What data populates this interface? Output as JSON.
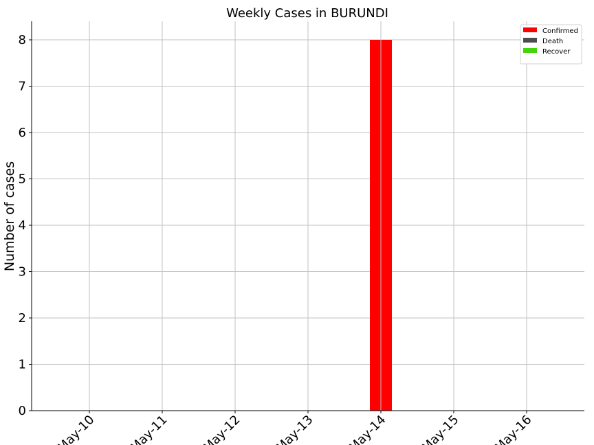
{
  "chart_data": {
    "type": "bar",
    "title": "Weekly Cases in BURUNDI",
    "xlabel": "",
    "ylabel": "Number of cases",
    "categories": [
      "May-10",
      "May-11",
      "May-12",
      "May-13",
      "May-14",
      "May-15",
      "May-16"
    ],
    "series": [
      {
        "name": "Confirmed",
        "color": "#ff0000",
        "values": [
          0,
          0,
          0,
          0,
          8,
          0,
          0
        ]
      },
      {
        "name": "Death",
        "color": "#4d4d4d",
        "values": [
          0,
          0,
          0,
          0,
          0,
          0,
          0
        ]
      },
      {
        "name": "Recover",
        "color": "#44d40c",
        "values": [
          0,
          0,
          0,
          0,
          0,
          0,
          0
        ]
      }
    ],
    "ylim": [
      0,
      8.4
    ],
    "yticks": [
      0,
      1,
      2,
      3,
      4,
      5,
      6,
      7,
      8
    ],
    "grid": true,
    "legend_position": "top-right",
    "xtick_rotation": 45
  }
}
